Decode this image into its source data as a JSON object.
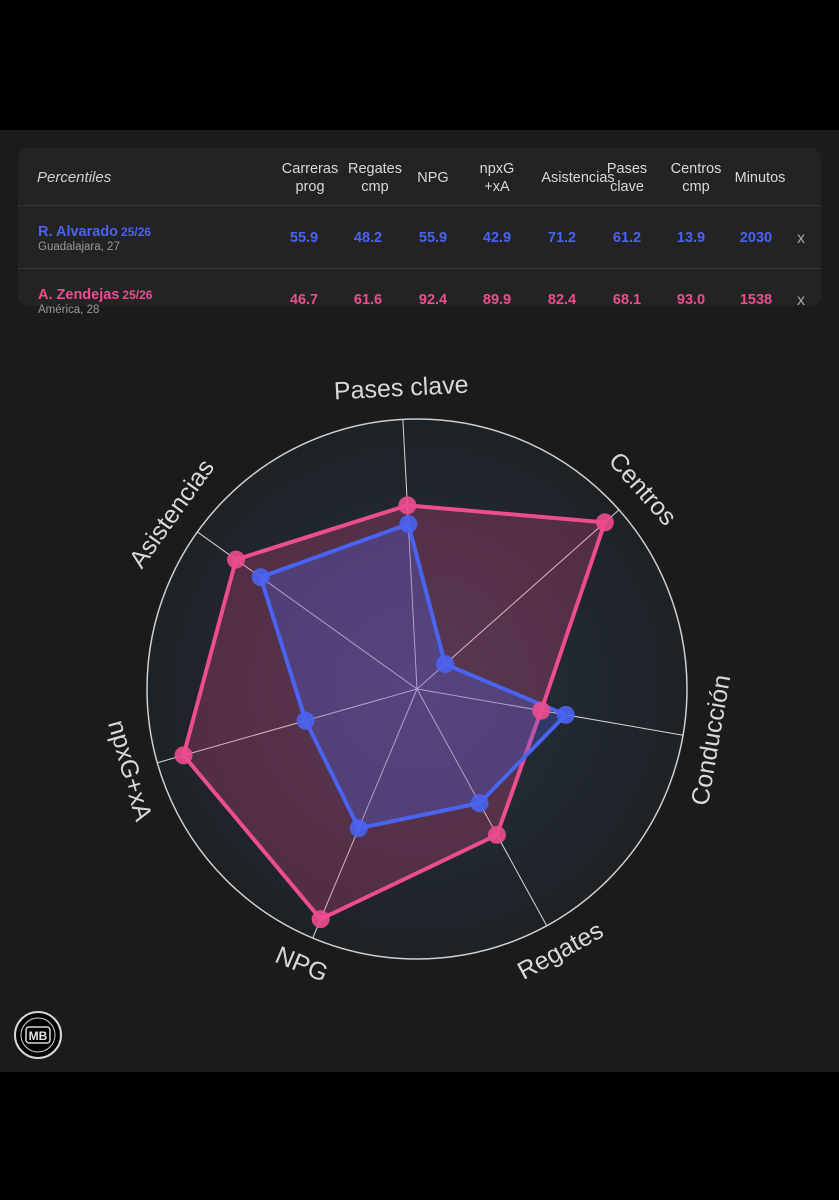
{
  "table": {
    "title": "Percentiles",
    "headers": [
      "Carreras\nprog",
      "Regates\ncmp",
      "NPG",
      "npxG\n+xA",
      "Asistencias",
      "Pases\nclave",
      "Centros\ncmp",
      "Minutos"
    ],
    "remove_label": "x",
    "players": [
      {
        "name": "R. Alvarado",
        "season": "25/26",
        "team": "Guadalajara, 27",
        "color": "#4a63f0",
        "values": [
          "55.9",
          "48.2",
          "55.9",
          "42.9",
          "71.2",
          "61.2",
          "13.9",
          "2030"
        ]
      },
      {
        "name": "A. Zendejas",
        "season": "25/26",
        "team": "América, 28",
        "color": "#ec4d8f",
        "values": [
          "46.7",
          "61.6",
          "92.4",
          "89.9",
          "82.4",
          "68.1",
          "93.0",
          "1538"
        ]
      }
    ]
  },
  "chart_data": {
    "type": "radar",
    "axes": [
      "Pases clave",
      "Centros",
      "Conducción",
      "Regates",
      "NPG",
      "npxG+xA",
      "Asistencias"
    ],
    "range": [
      0,
      100
    ],
    "series": [
      {
        "name": "R. Alvarado",
        "color": "#4a63f0",
        "values": [
          61.2,
          13.9,
          55.9,
          48.2,
          55.9,
          42.9,
          71.2
        ]
      },
      {
        "name": "A. Zendejas",
        "color": "#ec4d8f",
        "values": [
          68.1,
          93.0,
          46.7,
          61.6,
          92.4,
          89.9,
          82.4
        ]
      }
    ]
  },
  "logo": {
    "text": "MB"
  }
}
